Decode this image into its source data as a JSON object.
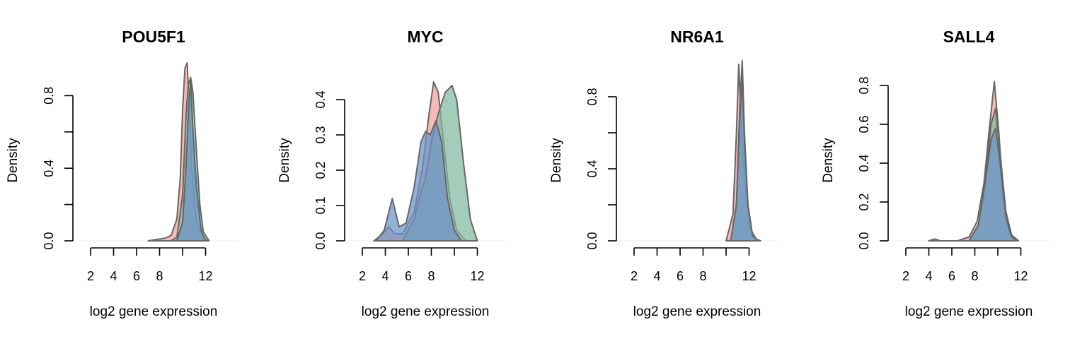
{
  "chart_data": [
    {
      "type": "area",
      "title": "POU5F1",
      "xlabel": "log2 gene expression",
      "ylabel": "Density",
      "xlim": [
        1,
        14
      ],
      "ylim": [
        0,
        0.9
      ],
      "xticks": [
        2,
        4,
        6,
        8,
        10,
        12
      ],
      "xtick_labels": [
        "2",
        "4",
        "6",
        "8",
        "",
        "12"
      ],
      "yticks": [
        0,
        0.2,
        0.4,
        0.6,
        0.8
      ],
      "ytick_labels": [
        "0.0",
        "",
        "0.4",
        "",
        "0.8"
      ],
      "series": [
        {
          "color": "#f4a09a",
          "x": [
            7,
            8,
            8.5,
            9,
            9.5,
            9.8,
            10.0,
            10.2,
            10.4,
            10.6,
            10.8,
            11.0,
            11.3,
            11.8,
            12.2
          ],
          "values": [
            0,
            0.01,
            0.015,
            0.03,
            0.12,
            0.35,
            0.72,
            0.95,
            0.98,
            0.7,
            0.4,
            0.22,
            0.08,
            0.02,
            0
          ]
        },
        {
          "color": "#7fb8a0",
          "x": [
            9,
            9.5,
            10.0,
            10.3,
            10.5,
            10.7,
            10.9,
            11.2,
            11.5,
            11.8,
            12.3
          ],
          "values": [
            0,
            0.02,
            0.25,
            0.7,
            0.86,
            0.9,
            0.82,
            0.5,
            0.2,
            0.05,
            0
          ]
        },
        {
          "color": "#6a93c9",
          "x": [
            9.5,
            10.0,
            10.3,
            10.5,
            10.7,
            10.9,
            11.2,
            11.6,
            12.0
          ],
          "values": [
            0,
            0.1,
            0.4,
            0.7,
            0.88,
            0.6,
            0.3,
            0.06,
            0
          ]
        }
      ]
    },
    {
      "type": "area",
      "title": "MYC",
      "xlabel": "log2 gene expression",
      "ylabel": "Density",
      "xlim": [
        1,
        14
      ],
      "ylim": [
        0,
        0.42
      ],
      "xticks": [
        2,
        4,
        6,
        8,
        10,
        12
      ],
      "xtick_labels": [
        "2",
        "4",
        "6",
        "8",
        "",
        "12"
      ],
      "yticks": [
        0,
        0.1,
        0.2,
        0.3,
        0.4
      ],
      "ytick_labels": [
        "0.0",
        "0.1",
        "0.2",
        "0.3",
        "0.4"
      ],
      "series": [
        {
          "color": "#f4a09a",
          "x": [
            3,
            3.8,
            4.3,
            4.8,
            5.5,
            6.5,
            7.2,
            7.8,
            8.2,
            8.6,
            9.0,
            9.6,
            10.2,
            11.0
          ],
          "values": [
            0,
            0.02,
            0.04,
            0.02,
            0.02,
            0.08,
            0.2,
            0.36,
            0.45,
            0.42,
            0.3,
            0.12,
            0.03,
            0
          ]
        },
        {
          "color": "#7fb8a0",
          "x": [
            5.5,
            6.5,
            7.0,
            7.5,
            8.0,
            8.6,
            9.2,
            9.8,
            10.2,
            10.8,
            11.4,
            12.0
          ],
          "values": [
            0,
            0.06,
            0.13,
            0.18,
            0.28,
            0.36,
            0.42,
            0.44,
            0.4,
            0.22,
            0.06,
            0
          ]
        },
        {
          "color": "#6a93c9",
          "x": [
            3.2,
            3.9,
            4.6,
            5.2,
            5.8,
            6.5,
            7.1,
            7.5,
            7.9,
            8.4,
            8.9,
            9.4,
            10.0,
            10.6
          ],
          "values": [
            0,
            0.03,
            0.12,
            0.04,
            0.05,
            0.15,
            0.28,
            0.31,
            0.3,
            0.34,
            0.28,
            0.12,
            0.03,
            0
          ]
        }
      ]
    },
    {
      "type": "area",
      "title": "NR6A1",
      "xlabel": "log2 gene expression",
      "ylabel": "Density",
      "xlim": [
        1,
        14
      ],
      "ylim": [
        0,
        0.9
      ],
      "xticks": [
        2,
        4,
        6,
        8,
        10,
        12
      ],
      "xtick_labels": [
        "2",
        "4",
        "6",
        "8",
        "",
        "12"
      ],
      "yticks": [
        0,
        0.2,
        0.4,
        0.6,
        0.8
      ],
      "ytick_labels": [
        "0.0",
        "",
        "0.4",
        "",
        "0.8"
      ],
      "series": [
        {
          "color": "#f4a09a",
          "x": [
            10.0,
            10.6,
            10.9,
            11.1,
            11.3,
            11.6,
            12.0,
            12.6,
            13.0
          ],
          "values": [
            0,
            0.15,
            0.6,
            0.98,
            0.7,
            0.35,
            0.08,
            0.01,
            0
          ]
        },
        {
          "color": "#7fb8a0",
          "x": [
            10.4,
            10.9,
            11.2,
            11.4,
            11.6,
            11.9,
            12.3,
            12.8
          ],
          "values": [
            0,
            0.2,
            0.75,
            1.0,
            0.6,
            0.2,
            0.03,
            0
          ]
        },
        {
          "color": "#6a93c9",
          "x": [
            10.4,
            10.9,
            11.2,
            11.4,
            11.6,
            11.9,
            12.3,
            12.8
          ],
          "values": [
            0,
            0.2,
            0.7,
            0.9,
            0.55,
            0.2,
            0.03,
            0
          ]
        }
      ]
    },
    {
      "type": "area",
      "title": "SALL4",
      "xlabel": "log2 gene expression",
      "ylabel": "Density",
      "xlim": [
        1,
        14
      ],
      "ylim": [
        0,
        0.8
      ],
      "xticks": [
        2,
        4,
        6,
        8,
        10,
        12
      ],
      "xtick_labels": [
        "2",
        "4",
        "6",
        "8",
        "",
        "12"
      ],
      "yticks": [
        0,
        0.2,
        0.4,
        0.6,
        0.8
      ],
      "ytick_labels": [
        "0.0",
        "0.2",
        "0.4",
        "0.6",
        "0.8"
      ],
      "series": [
        {
          "color": "#f4a09a",
          "x": [
            4.0,
            4.5,
            5.0,
            6.5,
            7.5,
            8.2,
            8.8,
            9.3,
            9.7,
            10.1,
            10.5,
            11.0,
            11.5
          ],
          "values": [
            0,
            0.01,
            0,
            0,
            0.02,
            0.1,
            0.3,
            0.6,
            0.82,
            0.55,
            0.2,
            0.04,
            0
          ]
        },
        {
          "color": "#7fb8a0",
          "x": [
            7.5,
            8.3,
            8.9,
            9.4,
            9.8,
            10.2,
            10.7,
            11.2,
            11.8
          ],
          "values": [
            0,
            0.08,
            0.3,
            0.6,
            0.68,
            0.45,
            0.15,
            0.03,
            0
          ]
        },
        {
          "color": "#6a93c9",
          "x": [
            7.5,
            8.3,
            8.9,
            9.4,
            9.8,
            10.2,
            10.7,
            11.2,
            11.6
          ],
          "values": [
            0,
            0.08,
            0.3,
            0.52,
            0.58,
            0.4,
            0.12,
            0.02,
            0
          ]
        }
      ]
    }
  ]
}
